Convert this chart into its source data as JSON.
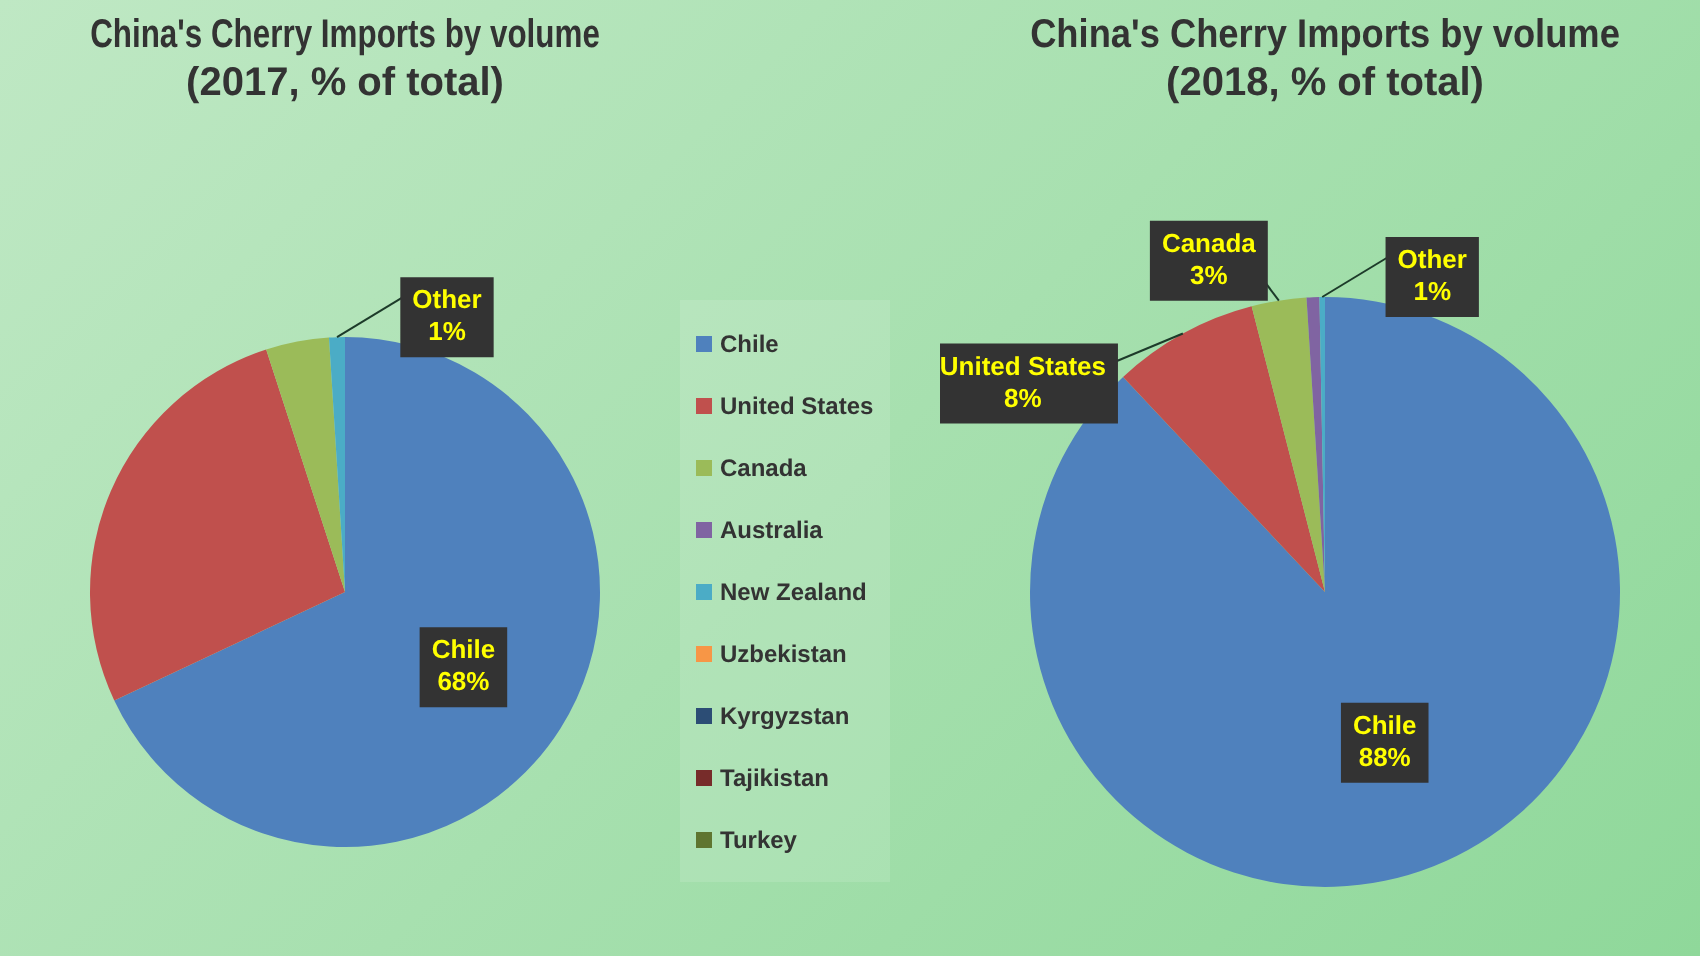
{
  "chart_data": [
    {
      "type": "pie",
      "title": "China's Cherry Imports by volume\n(2017, % of total)",
      "categories": [
        "Chile",
        "United States",
        "Canada",
        "Australia",
        "New Zealand",
        "Uzbekistan",
        "Kyrgyzstan",
        "Tajikistan",
        "Turkey"
      ],
      "values": [
        68,
        27,
        4,
        null,
        1,
        null,
        null,
        null,
        null
      ],
      "colors": [
        "#4f81bd",
        "#c0504d",
        "#9bbb59",
        "#8064a2",
        "#4bacc6",
        "#f79646",
        "#2c4d75",
        "#772c2a",
        "#5f7530"
      ],
      "value_labels": [
        "68%",
        null,
        null,
        null,
        null,
        null,
        null,
        null,
        null
      ],
      "annotations": [
        "Other\n1%"
      ],
      "legend": "right"
    },
    {
      "type": "pie",
      "title": "China's Cherry Imports by volume\n(2018, % of total)",
      "categories": [
        "Chile",
        "United States",
        "Canada",
        null,
        null
      ],
      "values": [
        88,
        8,
        3,
        0.7,
        0.3
      ],
      "colors": [
        "#4f81bd",
        "#c0504d",
        "#9bbb59",
        "#8064a2",
        "#4bacc6"
      ],
      "value_labels": [
        "88%",
        "8%",
        "3%",
        null,
        null
      ],
      "annotations": [
        "Other\n1%"
      ]
    }
  ]
}
